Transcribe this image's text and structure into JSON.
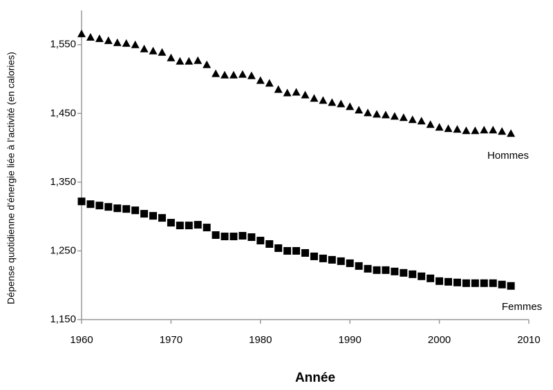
{
  "chart_data": {
    "type": "scatter",
    "y_label": "Dépense quotidienne d’énergie liée à l’activité (en calories)",
    "x_label": "Année",
    "x": [
      1960,
      1961,
      1962,
      1963,
      1964,
      1965,
      1966,
      1967,
      1968,
      1969,
      1970,
      1971,
      1972,
      1973,
      1974,
      1975,
      1976,
      1977,
      1978,
      1979,
      1980,
      1981,
      1982,
      1983,
      1984,
      1985,
      1986,
      1987,
      1988,
      1989,
      1990,
      1991,
      1992,
      1993,
      1994,
      1995,
      1996,
      1997,
      1998,
      1999,
      2000,
      2001,
      2002,
      2003,
      2004,
      2005,
      2006,
      2007,
      2008
    ],
    "series": [
      {
        "name": "Hommes",
        "color": "#000000",
        "marker": "triangle",
        "values": [
          1566,
          1561,
          1559,
          1556,
          1553,
          1552,
          1550,
          1544,
          1541,
          1539,
          1531,
          1526,
          1526,
          1527,
          1521,
          1508,
          1506,
          1506,
          1507,
          1505,
          1498,
          1494,
          1485,
          1480,
          1481,
          1477,
          1472,
          1469,
          1466,
          1464,
          1460,
          1455,
          1451,
          1449,
          1448,
          1446,
          1444,
          1441,
          1439,
          1434,
          1430,
          1428,
          1427,
          1425,
          1425,
          1426,
          1426,
          1424,
          1421
        ]
      },
      {
        "name": "Femmes",
        "color": "#000000",
        "marker": "square",
        "values": [
          1322,
          1318,
          1316,
          1314,
          1312,
          1311,
          1309,
          1304,
          1301,
          1298,
          1291,
          1287,
          1287,
          1288,
          1284,
          1273,
          1271,
          1271,
          1272,
          1270,
          1265,
          1260,
          1254,
          1250,
          1250,
          1247,
          1242,
          1239,
          1237,
          1235,
          1232,
          1228,
          1224,
          1222,
          1222,
          1220,
          1218,
          1216,
          1213,
          1210,
          1206,
          1205,
          1204,
          1203,
          1203,
          1203,
          1203,
          1201,
          1199
        ]
      }
    ],
    "xlim": [
      1960,
      2010
    ],
    "xticks": [
      1960,
      1970,
      1980,
      1990,
      2000,
      2010
    ],
    "ylim": [
      1150,
      1600
    ],
    "yticks": [
      {
        "value": 1150,
        "label": "1,150"
      },
      {
        "value": 1250,
        "label": "1,250"
      },
      {
        "value": 1350,
        "label": "1,350"
      },
      {
        "value": 1450,
        "label": "1,450"
      },
      {
        "value": 1550,
        "label": "1,550"
      }
    ]
  }
}
